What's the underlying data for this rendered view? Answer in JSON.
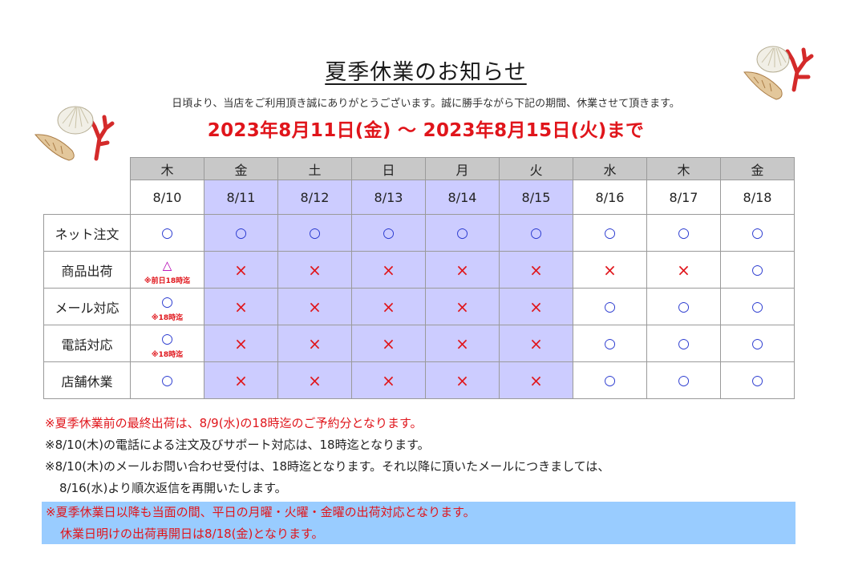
{
  "title": "夏季休業のお知らせ",
  "intro": "日頃より、当店をご利用頂き誠にありがとうございます。誠に勝手ながら下記の期間、休業させて頂きます。",
  "period": "2023年8月11日(金) ～ 2023年8月15日(火)まで",
  "colors": {
    "closed_day_bg": "#ccccff",
    "weekday_header_bg": "#c8c8c8",
    "ok_mark": "#2b3bd0",
    "ng_mark": "#e0151b",
    "highlight_bg": "#99ccff"
  },
  "days": [
    {
      "weekday": "木",
      "date": "8/10"
    },
    {
      "weekday": "金",
      "date": "8/11"
    },
    {
      "weekday": "土",
      "date": "8/12"
    },
    {
      "weekday": "日",
      "date": "8/13"
    },
    {
      "weekday": "月",
      "date": "8/14"
    },
    {
      "weekday": "火",
      "date": "8/15"
    },
    {
      "weekday": "水",
      "date": "8/16"
    },
    {
      "weekday": "木",
      "date": "8/17"
    },
    {
      "weekday": "金",
      "date": "8/18"
    }
  ],
  "services": [
    {
      "label": "ネット注文",
      "marks": [
        "○",
        "○",
        "○",
        "○",
        "○",
        "○",
        "○",
        "○",
        "○"
      ],
      "note": ""
    },
    {
      "label": "商品出荷",
      "marks": [
        "△",
        "×",
        "×",
        "×",
        "×",
        "×",
        "×",
        "×",
        "○"
      ],
      "note": "※前日18時迄"
    },
    {
      "label": "メール対応",
      "marks": [
        "○",
        "×",
        "×",
        "×",
        "×",
        "×",
        "○",
        "○",
        "○"
      ],
      "note": "※18時迄"
    },
    {
      "label": "電話対応",
      "marks": [
        "○",
        "×",
        "×",
        "×",
        "×",
        "×",
        "○",
        "○",
        "○"
      ],
      "note": "※18時迄"
    },
    {
      "label": "店舗休業",
      "marks": [
        "○",
        "×",
        "×",
        "×",
        "×",
        "×",
        "○",
        "○",
        "○"
      ],
      "note": ""
    }
  ],
  "notes": {
    "line1": "※夏季休業前の最終出荷は、8/9(水)の18時迄のご予約分となります。",
    "line2": "※8/10(木)の電話による注文及びサポート対応は、18時迄となります。",
    "line3a": "※8/10(木)のメールお問い合わせ受付は、18時迄となります。それ以降に頂いたメールにつきましては、",
    "line3b": "8/16(水)より順次返信を再開いたします。",
    "line4a": "※夏季休業日以降も当面の間、平日の月曜・火曜・金曜の出荷対応となります。",
    "line4b": "休業日明けの出荷再開日は8/18(金)となります。"
  }
}
